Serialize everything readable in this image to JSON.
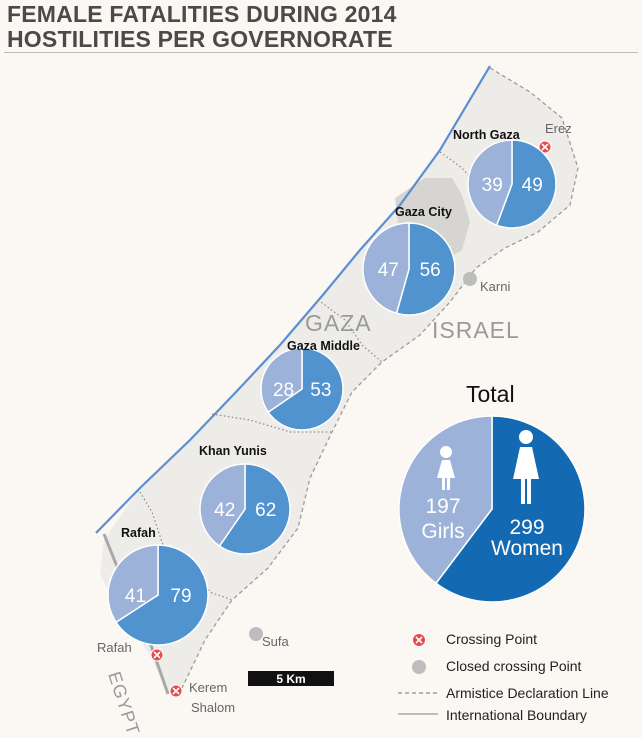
{
  "title": {
    "line1": "FEMALE FATALITIES DURING 2014",
    "line2": "HOSTILITIES PER GOVERNORATE"
  },
  "colors": {
    "girls": "#9db2d8",
    "women_region": "#5093cf",
    "women_total": "#1469b3",
    "coast": "#5b8fd0",
    "land": "#eeece9"
  },
  "governorates": [
    {
      "name": "North Gaza",
      "girls": 39,
      "women": 49
    },
    {
      "name": "Gaza City",
      "girls": 47,
      "women": 56
    },
    {
      "name": "Gaza Middle",
      "girls": 28,
      "women": 53
    },
    {
      "name": "Khan Yunis",
      "girls": 42,
      "women": 62
    },
    {
      "name": "Rafah",
      "girls": 41,
      "women": 79
    }
  ],
  "total": {
    "title": "Total",
    "girls_value": 197,
    "girls_label": "Girls",
    "women_value": 299,
    "women_label": "Women",
    "girl_icon": "girl-icon",
    "woman_icon": "woman-icon"
  },
  "places": {
    "erez": "Erez",
    "karni": "Karni",
    "sufa": "Sufa",
    "rafah": "Rafah",
    "kerem1": "Kerem",
    "kerem2": "Shalom",
    "gaza": "GAZA",
    "israel": "ISRAEL",
    "egypt": "EGYPT"
  },
  "scale": "5 Km",
  "legend": {
    "crossing": "Crossing Point",
    "closed": "Closed crossing Point",
    "armistice": "Armistice Declaration Line",
    "international": "International Boundary"
  },
  "icons": {
    "crossing": "crossing-point-icon",
    "closed": "closed-crossing-icon"
  }
}
